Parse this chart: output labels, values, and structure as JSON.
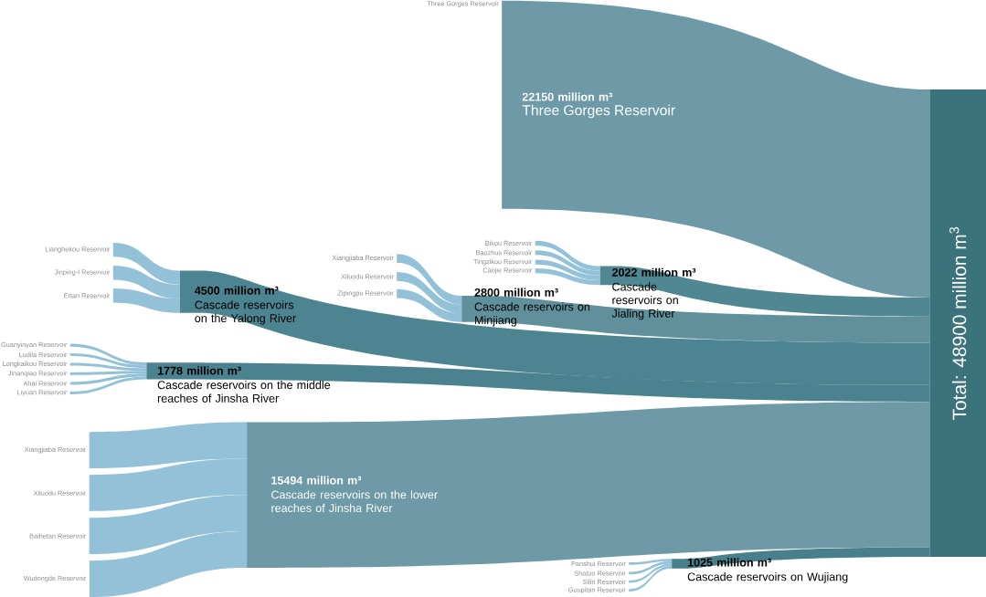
{
  "chart_data": {
    "type": "other",
    "categories": [
      "Three Gorges Reservoir",
      "Cascade reservoirs on the Yalong River",
      "Cascade reservoirs on Minjiang",
      "Cascade reservoirs on Jialing River",
      "Cascade reservoirs on the middle reaches of Jinsha River",
      "Cascade reservoirs on the lower reaches of Jinsha River",
      "Cascade reservoirs on Wujiang"
    ],
    "values": [
      22150,
      4500,
      2800,
      2022,
      1778,
      15494,
      1025
    ],
    "value_labels": [
      "22150 million m³",
      "4500 million m³",
      "2800 million m³",
      "2022 million m³",
      "1778 million m³",
      "15494 million m³",
      "1025 million m³"
    ],
    "colors": [
      "#6e9aa8",
      "#4c8591",
      "#5f909c",
      "#4f8893",
      "#4a838f",
      "#6e9aa8",
      "#47808b"
    ],
    "annotations": [
      "Three Gorges Reservoir",
      "Lianghekou Reservoir",
      "Jinping-I Reservoir",
      "Ertan Reservoir",
      "Xiangjiaba Reservoir",
      "Xiluodu Reservoir",
      "Zipingpu Reservoir",
      "Bikou Reservoir",
      "Baozhus Reservoir",
      "Tingzikou Reservoir",
      "Caojie Reservoir",
      "Guanyinyan Reservoir",
      "Ludila Reservoir",
      "Longkaikou Reservoir",
      "Jinanqiao Reservoir",
      "Ahai Reservoir",
      "Liyuan Reservoir",
      "Xiangjiaba Reservoir",
      "Xiluodu Reservoir",
      "Baihetan Reservoir",
      "Wudongde Reservoir",
      "Panshui Reservoir",
      "Shatuo Reservoir",
      "Silin Reservoir",
      "Goupitan Reservoir",
      "Total: 48900 million m$^{3}$"
    ]
  }
}
